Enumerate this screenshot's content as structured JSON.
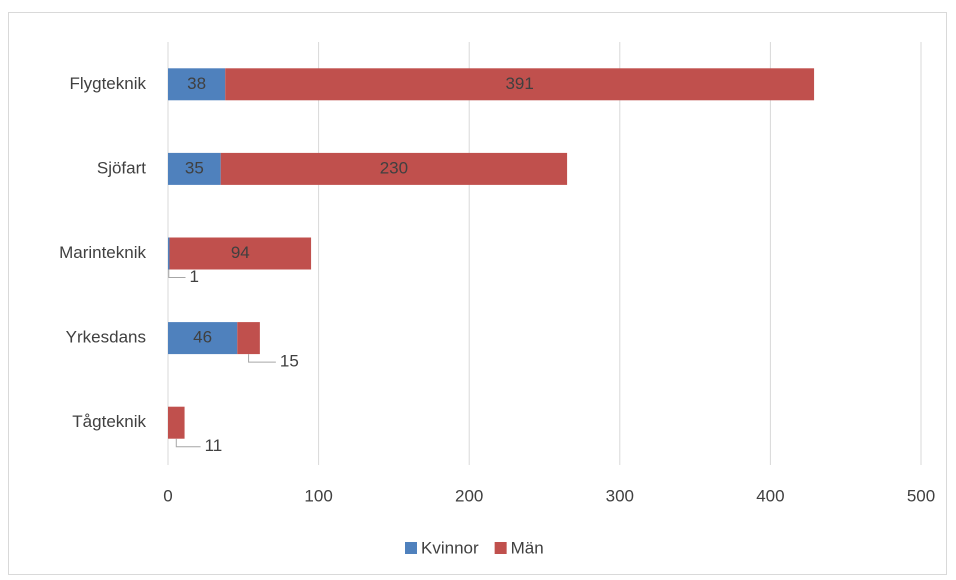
{
  "chart_data": {
    "type": "bar",
    "orientation": "horizontal",
    "stacked": true,
    "categories": [
      "Flygteknik",
      "Sjöfart",
      "Marinteknik",
      "Yrkesdans",
      "Tågteknik"
    ],
    "series": [
      {
        "name": "Kvinnor",
        "color": "#4f81bd",
        "values": [
          38,
          35,
          1,
          46,
          null
        ]
      },
      {
        "name": "Män",
        "color": "#c0504d",
        "values": [
          391,
          230,
          94,
          15,
          11
        ]
      }
    ],
    "xlim": [
      0,
      500
    ],
    "xticks": [
      0,
      100,
      200,
      300,
      400,
      500
    ],
    "grid": true,
    "legend": "bottom"
  }
}
